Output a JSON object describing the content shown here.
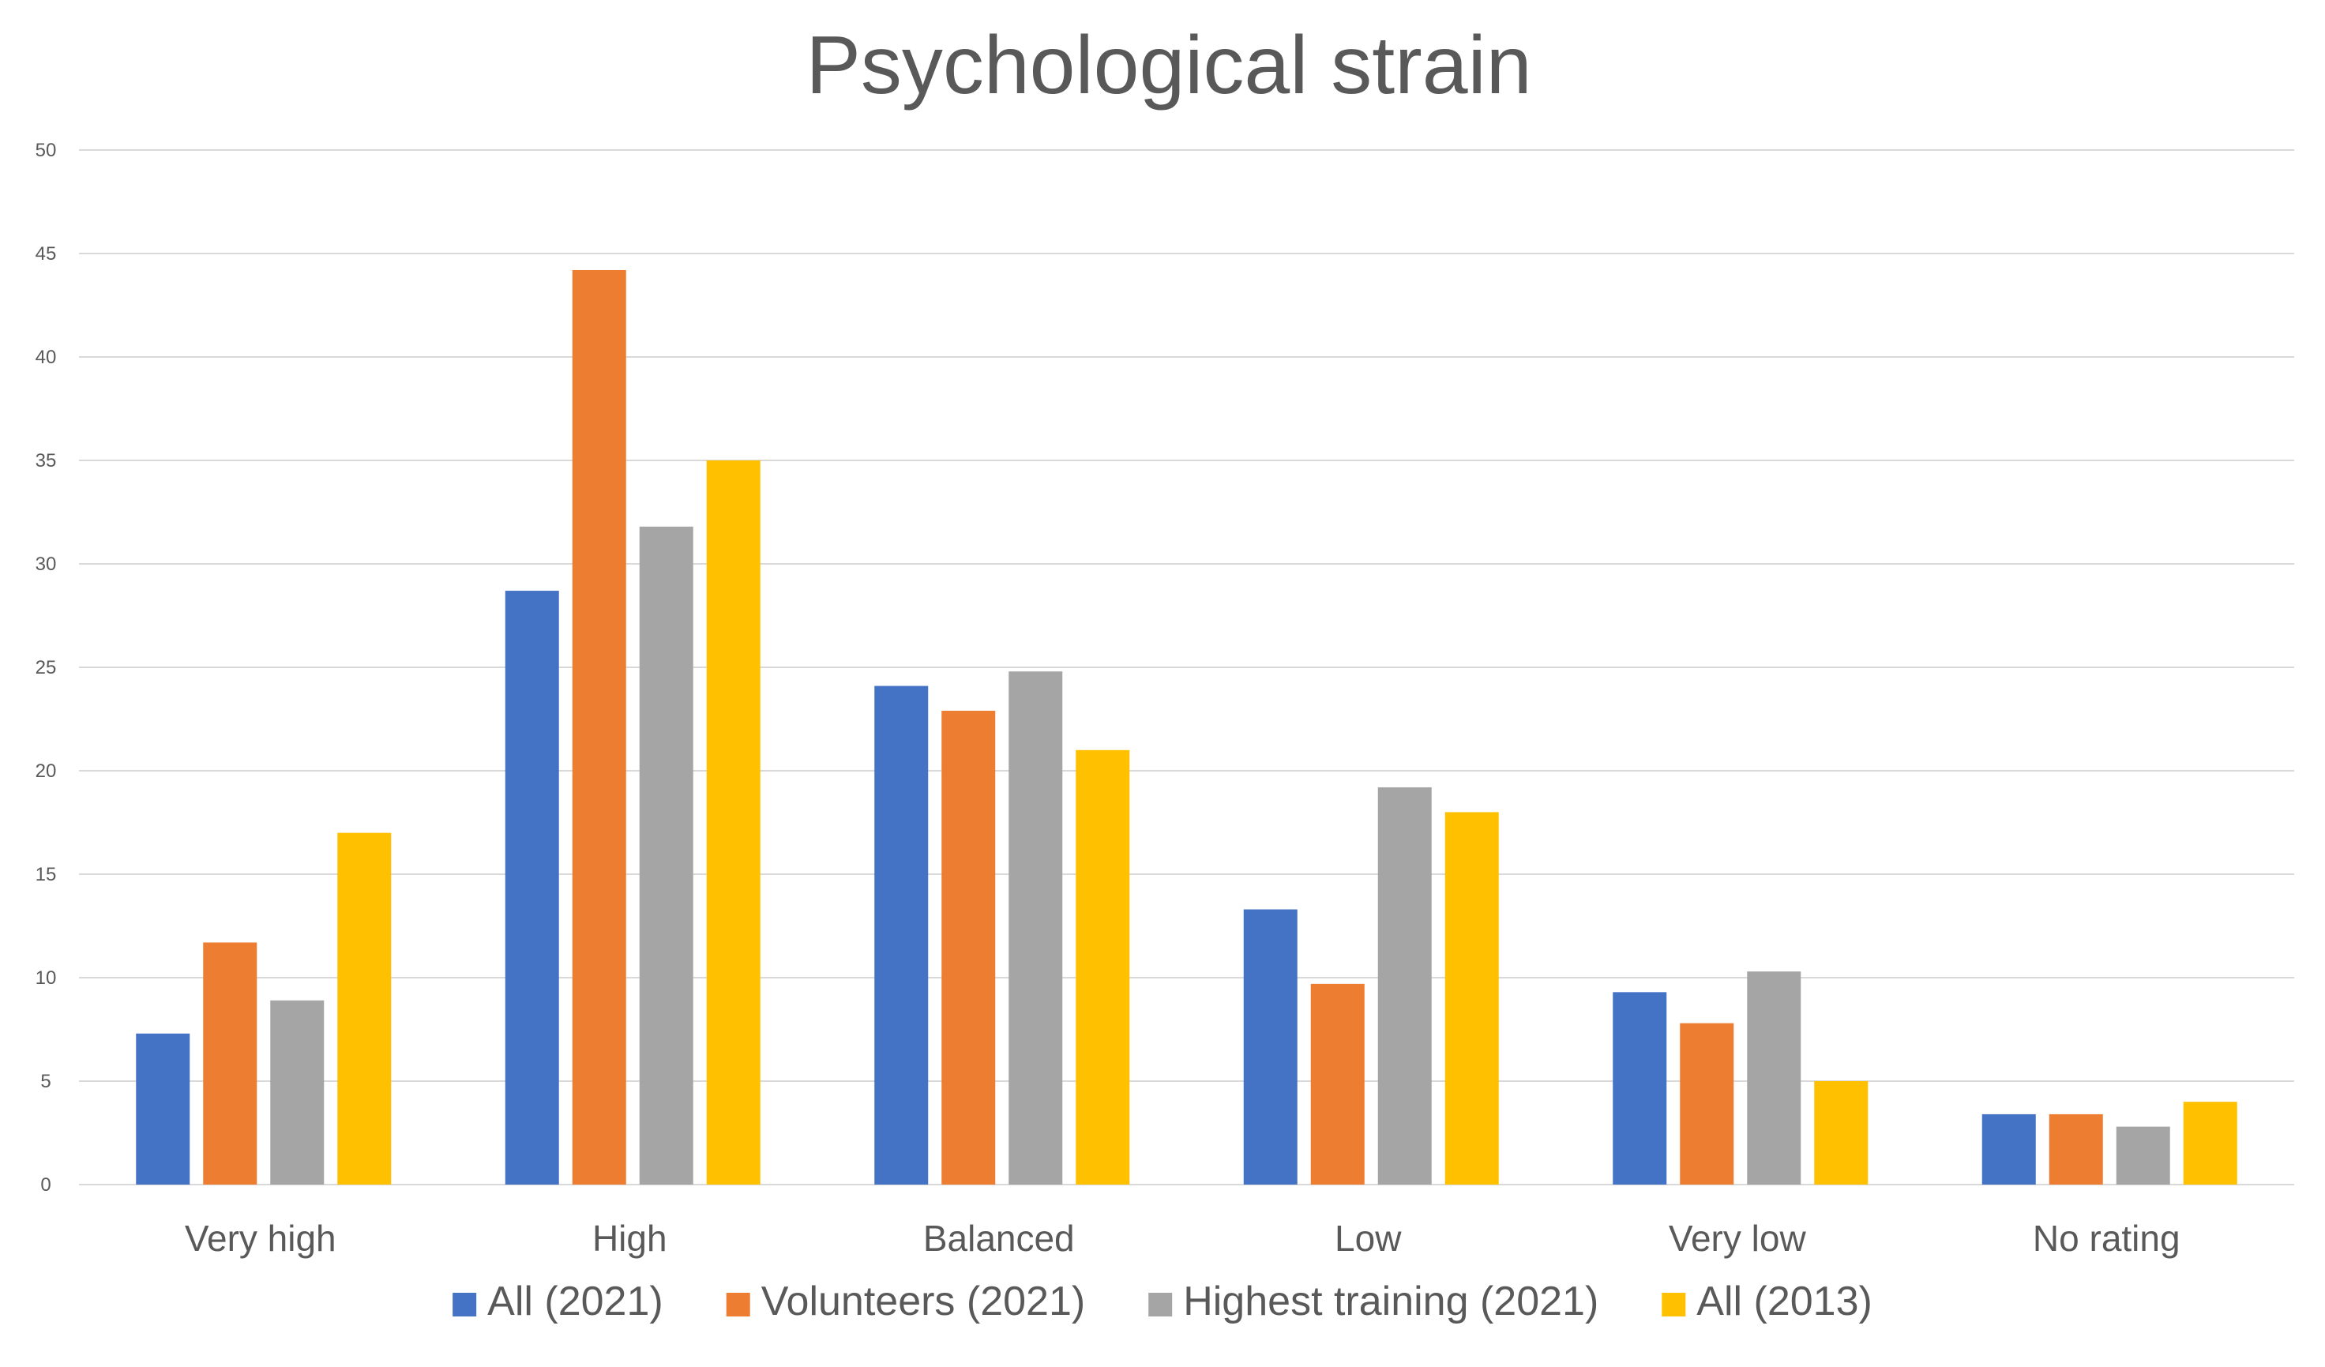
{
  "chart_data": {
    "type": "bar",
    "title": "Psychological strain",
    "xlabel": "",
    "ylabel": "",
    "ylim": [
      0,
      50
    ],
    "y_ticks": [
      "0",
      "5",
      "10",
      "15",
      "20",
      "25",
      "30",
      "35",
      "40",
      "45",
      "50"
    ],
    "grid": true,
    "legend_position": "bottom",
    "categories": [
      "Very high",
      "High",
      "Balanced",
      "Low",
      "Very low",
      "No rating"
    ],
    "series": [
      {
        "name": "All (2021)",
        "color": "#4472C4",
        "values": [
          7.3,
          28.7,
          24.1,
          13.3,
          9.3,
          3.4
        ]
      },
      {
        "name": "Volunteers (2021)",
        "color": "#ED7D31",
        "values": [
          11.7,
          44.2,
          22.9,
          9.7,
          7.8,
          3.4
        ]
      },
      {
        "name": "Highest training (2021)",
        "color": "#A5A5A5",
        "values": [
          8.9,
          31.8,
          24.8,
          19.2,
          10.3,
          2.8
        ]
      },
      {
        "name": "All (2013)",
        "color": "#FFC000",
        "values": [
          17.0,
          35.0,
          21.0,
          18.0,
          5.0,
          4.0
        ]
      }
    ]
  }
}
